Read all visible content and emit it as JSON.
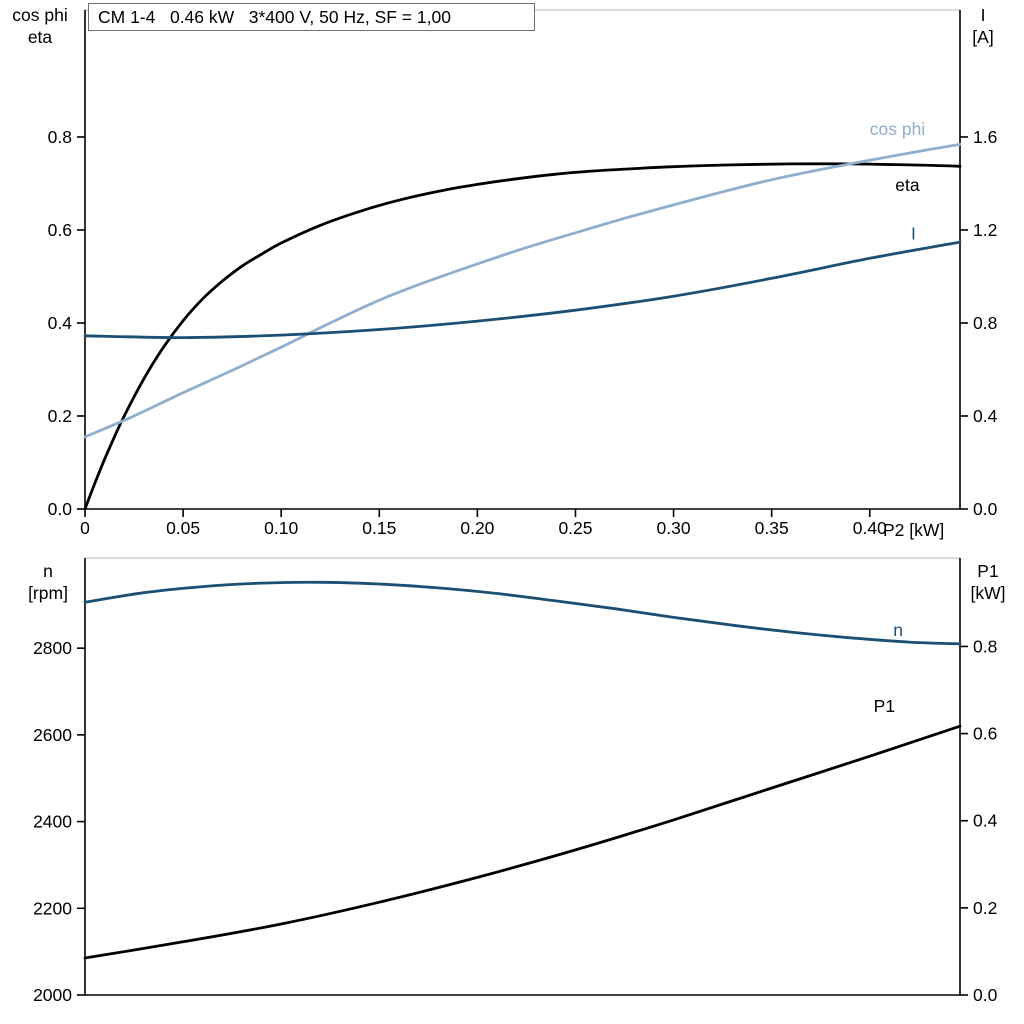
{
  "title_box": "CM 1-4   0.46 kW   3*400 V, 50 Hz, SF = 1,00",
  "colors": {
    "black": "#000000",
    "dark_blue": "#1c4f74",
    "light_blue": "#8fafcc",
    "axis": "#000000",
    "frame_gray": "#b5b5b5"
  },
  "chart_data": [
    {
      "id": "top",
      "type": "line",
      "x_axis": {
        "label": "P2 [kW]",
        "min": 0,
        "max": 0.446,
        "ticks": [
          {
            "v": 0,
            "label": "0"
          },
          {
            "v": 0.05,
            "label": "0.05"
          },
          {
            "v": 0.1,
            "label": "0.10"
          },
          {
            "v": 0.15,
            "label": "0.15"
          },
          {
            "v": 0.2,
            "label": "0.20"
          },
          {
            "v": 0.25,
            "label": "0.25"
          },
          {
            "v": 0.3,
            "label": "0.30"
          },
          {
            "v": 0.35,
            "label": "0.35"
          },
          {
            "v": 0.4,
            "label": "0.40"
          }
        ]
      },
      "left_axis": {
        "title": [
          "cos phi",
          "eta"
        ],
        "min": 0,
        "max": 1.073,
        "ticks": [
          {
            "v": 0.0,
            "label": "0.0"
          },
          {
            "v": 0.2,
            "label": "0.2"
          },
          {
            "v": 0.4,
            "label": "0.4"
          },
          {
            "v": 0.6,
            "label": "0.6"
          },
          {
            "v": 0.8,
            "label": "0.8"
          }
        ]
      },
      "right_axis": {
        "title": [
          "I",
          "[A]"
        ],
        "min": 0,
        "max": 2.146,
        "ticks": [
          {
            "v": 0.0,
            "label": "0.0"
          },
          {
            "v": 0.4,
            "label": "0.4"
          },
          {
            "v": 0.8,
            "label": "0.8"
          },
          {
            "v": 1.2,
            "label": "1.2"
          },
          {
            "v": 1.6,
            "label": "1.6"
          }
        ]
      },
      "series": [
        {
          "name": "eta",
          "label": "eta",
          "color": "black",
          "axis": "left",
          "label_pos": [
            0.413,
            0.697
          ],
          "points": [
            [
              0,
              0
            ],
            [
              0.005,
              0.055
            ],
            [
              0.01,
              0.107
            ],
            [
              0.015,
              0.155
            ],
            [
              0.02,
              0.2
            ],
            [
              0.03,
              0.28
            ],
            [
              0.04,
              0.348
            ],
            [
              0.05,
              0.405
            ],
            [
              0.06,
              0.452
            ],
            [
              0.07,
              0.49
            ],
            [
              0.08,
              0.522
            ],
            [
              0.09,
              0.548
            ],
            [
              0.1,
              0.572
            ],
            [
              0.12,
              0.61
            ],
            [
              0.14,
              0.64
            ],
            [
              0.16,
              0.664
            ],
            [
              0.18,
              0.683
            ],
            [
              0.2,
              0.698
            ],
            [
              0.22,
              0.71
            ],
            [
              0.24,
              0.72
            ],
            [
              0.26,
              0.727
            ],
            [
              0.28,
              0.732
            ],
            [
              0.3,
              0.736
            ],
            [
              0.33,
              0.74
            ],
            [
              0.36,
              0.742
            ],
            [
              0.39,
              0.742
            ],
            [
              0.42,
              0.74
            ],
            [
              0.446,
              0.737
            ]
          ]
        },
        {
          "name": "cos phi",
          "label": "cos phi",
          "color": "light_blue",
          "axis": "left",
          "label_pos": [
            0.4,
            0.817
          ],
          "points": [
            [
              0,
              0.155
            ],
            [
              0.025,
              0.2
            ],
            [
              0.05,
              0.25
            ],
            [
              0.075,
              0.298
            ],
            [
              0.1,
              0.348
            ],
            [
              0.125,
              0.4
            ],
            [
              0.15,
              0.449
            ],
            [
              0.175,
              0.49
            ],
            [
              0.2,
              0.527
            ],
            [
              0.225,
              0.562
            ],
            [
              0.25,
              0.594
            ],
            [
              0.275,
              0.625
            ],
            [
              0.3,
              0.654
            ],
            [
              0.325,
              0.682
            ],
            [
              0.35,
              0.708
            ],
            [
              0.375,
              0.73
            ],
            [
              0.4,
              0.75
            ],
            [
              0.425,
              0.769
            ],
            [
              0.446,
              0.784
            ]
          ]
        },
        {
          "name": "I",
          "label": "I",
          "color": "dark_blue",
          "axis": "right",
          "label_pos": [
            0.421,
            1.185
          ],
          "points": [
            [
              0,
              0.745
            ],
            [
              0.05,
              0.737
            ],
            [
              0.1,
              0.748
            ],
            [
              0.15,
              0.772
            ],
            [
              0.2,
              0.808
            ],
            [
              0.25,
              0.855
            ],
            [
              0.3,
              0.915
            ],
            [
              0.35,
              0.992
            ],
            [
              0.4,
              1.078
            ],
            [
              0.446,
              1.148
            ]
          ]
        }
      ]
    },
    {
      "id": "bottom",
      "type": "line",
      "x_axis": {
        "label": "",
        "min": 0,
        "max": 0.446,
        "ticks": []
      },
      "left_axis": {
        "title": [
          "n",
          "[rpm]"
        ],
        "min": 2000,
        "max": 3008,
        "ticks": [
          {
            "v": 2000,
            "label": "2000"
          },
          {
            "v": 2200,
            "label": "2200"
          },
          {
            "v": 2400,
            "label": "2400"
          },
          {
            "v": 2600,
            "label": "2600"
          },
          {
            "v": 2800,
            "label": "2800"
          }
        ]
      },
      "right_axis": {
        "title": [
          "P1",
          "[kW]"
        ],
        "min": 0,
        "max": 1.003,
        "ticks": [
          {
            "v": 0.0,
            "label": "0.0"
          },
          {
            "v": 0.2,
            "label": "0.2"
          },
          {
            "v": 0.4,
            "label": "0.4"
          },
          {
            "v": 0.6,
            "label": "0.6"
          },
          {
            "v": 0.8,
            "label": "0.8"
          }
        ]
      },
      "series": [
        {
          "name": "n",
          "label": "n",
          "color": "dark_blue",
          "axis": "left",
          "label_pos": [
            0.412,
            2842
          ],
          "points": [
            [
              0,
              2906
            ],
            [
              0.03,
              2928
            ],
            [
              0.06,
              2942
            ],
            [
              0.09,
              2950
            ],
            [
              0.12,
              2952
            ],
            [
              0.15,
              2948
            ],
            [
              0.18,
              2939
            ],
            [
              0.21,
              2926
            ],
            [
              0.24,
              2909
            ],
            [
              0.27,
              2891
            ],
            [
              0.3,
              2871
            ],
            [
              0.33,
              2853
            ],
            [
              0.36,
              2837
            ],
            [
              0.39,
              2824
            ],
            [
              0.42,
              2814
            ],
            [
              0.446,
              2810
            ]
          ]
        },
        {
          "name": "P1",
          "label": "P1",
          "color": "black",
          "axis": "right",
          "label_pos": [
            0.402,
            0.663
          ],
          "points": [
            [
              0,
              0.085
            ],
            [
              0.05,
              0.122
            ],
            [
              0.1,
              0.163
            ],
            [
              0.15,
              0.213
            ],
            [
              0.2,
              0.27
            ],
            [
              0.25,
              0.333
            ],
            [
              0.3,
              0.402
            ],
            [
              0.35,
              0.475
            ],
            [
              0.4,
              0.548
            ],
            [
              0.446,
              0.617
            ]
          ]
        }
      ]
    }
  ]
}
